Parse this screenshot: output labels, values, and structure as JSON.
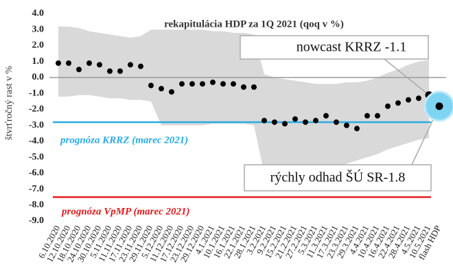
{
  "chart_data": {
    "type": "scatter",
    "title": "rekapitulácia HDP za 1Q 2021 (qoq v %)",
    "y_label": "štvrťročný rast v %",
    "categories": [
      "6.10.2020",
      "12.10.2020",
      "18.10.2020",
      "24.10.2020",
      "30.10.2020",
      "5.11.2020",
      "11.11.2020",
      "17.11.2020",
      "23.11.2020",
      "29.11.2020",
      "5.12.2020",
      "11.12.2020",
      "17.12.2020",
      "23.12.2020",
      "29.12.2020",
      "4.1.2021",
      "10.1.2021",
      "16.1.2021",
      "22.1.2021",
      "28.1.2021",
      "3.2.2021",
      "9.2.2021",
      "15.2.2021",
      "21.2.2021",
      "27.2.2021",
      "5.3.2021",
      "11.3.2021",
      "17.3.2021",
      "23.3.2021",
      "29.3.2021",
      "4.4.2021",
      "10.4.2021",
      "16.4.2021",
      "22.4.2021",
      "28.4.2021",
      "4.5.2021",
      "10.5.2021",
      "flash HDP"
    ],
    "values": [
      0.9,
      0.9,
      0.5,
      0.9,
      0.8,
      0.4,
      0.4,
      0.8,
      0.7,
      -0.5,
      -0.7,
      -0.9,
      -0.4,
      -0.4,
      -0.4,
      -0.3,
      -0.4,
      -0.4,
      -0.6,
      -0.6,
      -2.7,
      -2.8,
      -2.9,
      -2.6,
      -2.8,
      -2.7,
      -2.4,
      -2.8,
      -3.0,
      -3.2,
      -2.4,
      -2.4,
      -1.8,
      -1.6,
      -1.4,
      -1.3,
      -1.1,
      -1.8
    ],
    "color": "#000000",
    "highlight_color": "#7fd4f2",
    "band_upper": [
      3.2,
      3.2,
      3.1,
      2.9,
      2.8,
      2.7,
      2.6,
      2.5,
      2.6,
      3.0,
      3.0,
      3.0,
      3.0,
      3.0,
      3.0,
      2.9,
      2.9,
      2.8,
      2.8,
      2.7,
      0.2,
      0.0,
      -0.1,
      -0.2,
      -0.3,
      -0.4,
      -0.4,
      -0.4,
      -0.3,
      -0.3,
      -0.2,
      0.0,
      0.3,
      0.5,
      0.8,
      1.0,
      1.1,
      null
    ],
    "band_lower": [
      -1.2,
      -1.2,
      -1.1,
      -1.1,
      -1.2,
      -1.3,
      -1.3,
      -1.4,
      -1.4,
      -1.5,
      -3.0,
      -3.0,
      -3.0,
      -3.0,
      -3.0,
      -2.9,
      -2.9,
      -2.9,
      -2.9,
      -3.0,
      -6.0,
      -6.1,
      -6.1,
      -6.0,
      -6.0,
      -5.9,
      -5.8,
      -5.6,
      -5.4,
      -5.2,
      -5.0,
      -4.8,
      -4.5,
      -4.3,
      -4.1,
      -3.9,
      -3.8,
      null
    ],
    "band_color": "#d9d9d9",
    "ref_lines": [
      {
        "value": -2.8,
        "color": "#29abe2",
        "label": "prognóza KRRZ  (marec 2021)"
      },
      {
        "value": -7.5,
        "color": "#e31a1c",
        "label": "prognóza VpMP  (marec 2021)"
      }
    ],
    "annotations": [
      "nowcast KRRZ -1.1",
      "rýchly odhad ŠÚ SR-1.8"
    ],
    "ylim": [
      -9,
      4
    ],
    "yticks": [
      {
        "value": 4,
        "label": "4.0"
      },
      {
        "value": 3,
        "label": "3.0"
      },
      {
        "value": 2,
        "label": "2.0"
      },
      {
        "value": 1,
        "label": "1.0"
      },
      {
        "value": 0,
        "label": "0.0"
      },
      {
        "value": -1,
        "label": "-1.0"
      },
      {
        "value": -2,
        "label": "-2.0"
      },
      {
        "value": -3,
        "label": "-3.0"
      },
      {
        "value": -4,
        "label": "-4.0"
      },
      {
        "value": -5,
        "label": "-5.0"
      },
      {
        "value": -6,
        "label": "-6.0"
      },
      {
        "value": -7,
        "label": "-7.0"
      },
      {
        "value": -8,
        "label": "-8.0"
      },
      {
        "value": -9,
        "label": "-9.0"
      }
    ]
  }
}
